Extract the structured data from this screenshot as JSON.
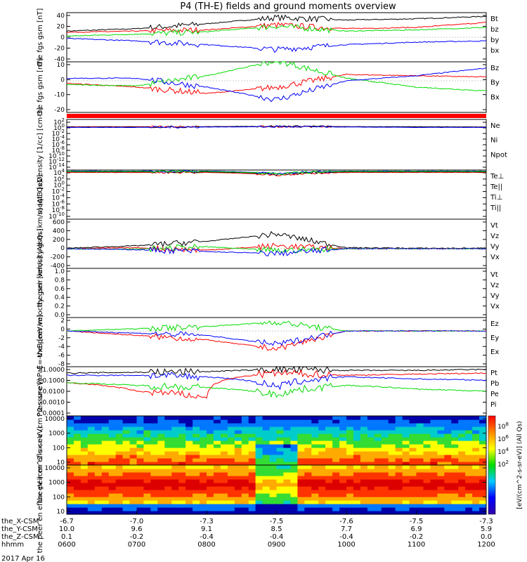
{
  "title": "P4 (TH-E) fields and ground moments overview",
  "date_label": "2017 Apr 16",
  "colorbar_label": "[eV/(cm^2-s-sr-eV)] (All Qs)",
  "colorbar_ticks": [
    "10^8",
    "10^6",
    "10^4",
    "10^2"
  ],
  "colors": {
    "black": "#000000",
    "red": "#ff0000",
    "green": "#00dd00",
    "blue": "#0000ff"
  },
  "xaxis": {
    "rows": [
      {
        "label": "the_X-CSM",
        "values": [
          "-6.7",
          "-7.0",
          "-7.3",
          "-7.5",
          "-7.6",
          "-7.5",
          "-7.3"
        ]
      },
      {
        "label": "the_Y-CSM",
        "values": [
          "10.0",
          "9.6",
          "9.1",
          "8.5",
          "7.7",
          "6.9",
          "5.9"
        ]
      },
      {
        "label": "the_Z-CSM",
        "values": [
          "0.1",
          "-0.2",
          "-0.4",
          "-0.4",
          "-0.4",
          "-0.2",
          "0.0"
        ]
      },
      {
        "label": "hhmm",
        "values": [
          "0600",
          "0700",
          "0800",
          "0900",
          "1000",
          "1100",
          "1200"
        ]
      }
    ]
  },
  "chart_data": [
    {
      "type": "line",
      "ylabel": "the fgs gsm [nT]",
      "ylim": [
        -40,
        40
      ],
      "ticks": [
        "40",
        "20",
        "0",
        "-20",
        "-40"
      ],
      "legend": [
        {
          "name": "Bt",
          "color": "black"
        },
        {
          "name": "bz",
          "color": "red"
        },
        {
          "name": "by",
          "color": "green"
        },
        {
          "name": "bx",
          "color": "blue"
        }
      ],
      "x": [
        "0600",
        "0700",
        "0800",
        "0900",
        "1000",
        "1100",
        "1200"
      ],
      "series": [
        {
          "name": "Bt",
          "values": [
            10,
            14,
            22,
            32,
            28,
            30,
            34
          ]
        },
        {
          "name": "bz",
          "values": [
            8,
            10,
            12,
            20,
            14,
            16,
            24
          ]
        },
        {
          "name": "by",
          "values": [
            2,
            5,
            9,
            18,
            10,
            12,
            16
          ]
        },
        {
          "name": "bx",
          "values": [
            -2,
            -6,
            -12,
            -20,
            -12,
            -8,
            -6
          ]
        }
      ]
    },
    {
      "type": "line",
      "ylabel": "the fgs gsm [nT]",
      "ylim": [
        -25,
        15
      ],
      "ticks": [
        "10",
        "0",
        "-10",
        "-20"
      ],
      "legend": [
        {
          "name": "Bz",
          "color": "red"
        },
        {
          "name": "By",
          "color": "green"
        },
        {
          "name": "Bx",
          "color": "blue"
        }
      ],
      "x": [
        "0600",
        "0700",
        "0800",
        "0900",
        "1000",
        "1100",
        "1200"
      ],
      "series": [
        {
          "name": "Bz",
          "values": [
            -2,
            -5,
            -10,
            -5,
            5,
            4,
            3
          ]
        },
        {
          "name": "By",
          "values": [
            -3,
            -4,
            4,
            16,
            2,
            -5,
            -8
          ]
        },
        {
          "name": "Bx",
          "values": [
            2,
            2,
            -5,
            -15,
            0,
            4,
            10
          ]
        }
      ]
    },
    {
      "type": "line",
      "ylabel": "Density [1/cc] [cm-3]",
      "ylim": [
        1e-14,
        100.0
      ],
      "scale": "log",
      "ticks": [
        "10^2",
        "10^0",
        "10^-2",
        "10^-4",
        "10^-6",
        "10^-8",
        "10^-10",
        "10^-12",
        "10^-14"
      ],
      "legend": [
        {
          "name": "Ne",
          "color": "red"
        },
        {
          "name": "Ni",
          "color": "black"
        },
        {
          "name": "Npot",
          "color": "blue"
        }
      ],
      "x": [
        "0600",
        "0700",
        "0800",
        "0900",
        "1000",
        "1100",
        "1200"
      ],
      "series": [
        {
          "name": "Ne",
          "values": [
            0.5,
            0.5,
            0.5,
            0.6,
            0.5,
            0.4,
            0.4
          ]
        },
        {
          "name": "Ni",
          "values": [
            0.4,
            0.4,
            0.5,
            0.7,
            0.5,
            0.5,
            0.4
          ]
        },
        {
          "name": "Npot",
          "values": [
            0.3,
            0.3,
            0.4,
            0.5,
            0.4,
            0.3,
            0.3
          ]
        }
      ]
    },
    {
      "type": "line",
      "ylabel": "moqt3 [eV]",
      "ylim": [
        1e-10,
        10000.0
      ],
      "scale": "log",
      "ticks": [
        "10^4",
        "10^2",
        "10^0",
        "10^-2",
        "10^-4",
        "10^-6",
        "10^-8",
        "10^-10"
      ],
      "legend": [
        {
          "name": "Te⊥",
          "color": "red"
        },
        {
          "name": "Te||",
          "color": "black"
        },
        {
          "name": "Ti⊥",
          "color": "blue"
        },
        {
          "name": "Ti||",
          "color": "green"
        }
      ],
      "x": [
        "0600",
        "0700",
        "0800",
        "0900",
        "1000",
        "1100",
        "1200"
      ],
      "series": [
        {
          "name": "Te⊥",
          "values": [
            2000,
            2000,
            2000,
            300,
            2000,
            2000,
            2000
          ]
        },
        {
          "name": "Te||",
          "values": [
            3000,
            3000,
            3000,
            500,
            3000,
            3000,
            3000
          ]
        },
        {
          "name": "Ti⊥",
          "values": [
            5000,
            5000,
            5000,
            800,
            5000,
            5000,
            5000
          ]
        },
        {
          "name": "Ti||",
          "values": [
            4000,
            4000,
            4000,
            700,
            4000,
            4000,
            4000
          ]
        }
      ]
    },
    {
      "type": "line",
      "ylabel": "the peir velocity gsm [km/s] (All Qs)",
      "ylim": [
        -400,
        600
      ],
      "ticks": [
        "600",
        "400",
        "200",
        "0",
        "-200",
        "-400"
      ],
      "legend": [
        {
          "name": "Vt",
          "color": "black"
        },
        {
          "name": "Vz",
          "color": "red"
        },
        {
          "name": "Vy",
          "color": "green"
        },
        {
          "name": "Vx",
          "color": "blue"
        }
      ],
      "x": [
        "0600",
        "0700",
        "0800",
        "0900",
        "1000",
        "1100",
        "1200"
      ],
      "series": [
        {
          "name": "Vt",
          "values": [
            10,
            60,
            150,
            300,
            20,
            10,
            10
          ]
        },
        {
          "name": "Vz",
          "values": [
            0,
            20,
            -30,
            60,
            0,
            0,
            0
          ]
        },
        {
          "name": "Vy",
          "values": [
            0,
            -10,
            40,
            -40,
            0,
            0,
            0
          ]
        },
        {
          "name": "Vx",
          "values": [
            0,
            -20,
            -60,
            -100,
            0,
            0,
            0
          ]
        }
      ]
    },
    {
      "type": "line",
      "ylabel": "the peer velocity gsm [km/s] (All Qs)",
      "ylim": [
        0,
        1
      ],
      "ticks": [
        "1.0",
        "0.8",
        "0.6",
        "0.4",
        "0.2",
        "0.0"
      ],
      "legend": [
        {
          "name": "Vt",
          "color": "black"
        },
        {
          "name": "Vz",
          "color": "red"
        },
        {
          "name": "Vy",
          "color": "green"
        },
        {
          "name": "Vx",
          "color": "blue"
        }
      ],
      "x": [],
      "series": []
    },
    {
      "type": "line",
      "ylabel": "E=-VxB [mV/m]",
      "ylim": [
        -8,
        3
      ],
      "ticks": [
        "2",
        "0",
        "-2",
        "-4",
        "-6",
        "-8"
      ],
      "legend": [
        {
          "name": "Ez",
          "color": "red"
        },
        {
          "name": "Ey",
          "color": "green"
        },
        {
          "name": "Ex",
          "color": "blue"
        }
      ],
      "x": [
        "0600",
        "0700",
        "0800",
        "0900",
        "1000",
        "1100",
        "1200"
      ],
      "series": [
        {
          "name": "Ez",
          "values": [
            0,
            -1,
            -2,
            -4,
            0,
            0,
            0
          ]
        },
        {
          "name": "Ey",
          "values": [
            0,
            0.5,
            1,
            2,
            0,
            0,
            0
          ]
        },
        {
          "name": "Ex",
          "values": [
            0,
            -0.5,
            -1,
            -3,
            0,
            0,
            0
          ]
        }
      ]
    },
    {
      "type": "line",
      "ylabel": "Pressure [nPa]",
      "ylim": [
        0.0001,
        1
      ],
      "scale": "log",
      "ticks": [
        "1.0000",
        "0.1000",
        "0.0100",
        "0.0010",
        "0.0001"
      ],
      "legend": [
        {
          "name": "Pt",
          "color": "black"
        },
        {
          "name": "Pb",
          "color": "red"
        },
        {
          "name": "Pe",
          "color": "green"
        },
        {
          "name": "Pi",
          "color": "blue"
        }
      ],
      "x": [
        "0600",
        "0700",
        "0800",
        "0900",
        "1000",
        "1100",
        "1200"
      ],
      "series": [
        {
          "name": "Pt",
          "values": [
            0.3,
            0.35,
            0.4,
            0.6,
            0.5,
            0.5,
            0.6
          ]
        },
        {
          "name": "Pb",
          "values": [
            0.05,
            0.01,
            0.003,
            0.3,
            0.2,
            0.25,
            0.3
          ]
        },
        {
          "name": "Pe",
          "values": [
            0.05,
            0.03,
            0.02,
            0.005,
            0.03,
            0.015,
            0.01
          ]
        },
        {
          "name": "Pi",
          "values": [
            0.2,
            0.2,
            0.15,
            0.02,
            0.15,
            0.1,
            0.08
          ]
        }
      ]
    },
    {
      "type": "heatmap",
      "ylabel": "the peir en eflux eV (cm^2-s-sr-eV)",
      "ylim": [
        10,
        20000
      ],
      "scale": "log",
      "ticks": [
        "10000",
        "1000",
        "100",
        "10"
      ]
    },
    {
      "type": "heatmap",
      "ylabel": "the peer en eflux eV (cm^2-s-sr-eV)",
      "ylim": [
        10,
        20000
      ],
      "scale": "log",
      "ticks": [
        "10000",
        "1000",
        "100",
        "10"
      ]
    }
  ]
}
